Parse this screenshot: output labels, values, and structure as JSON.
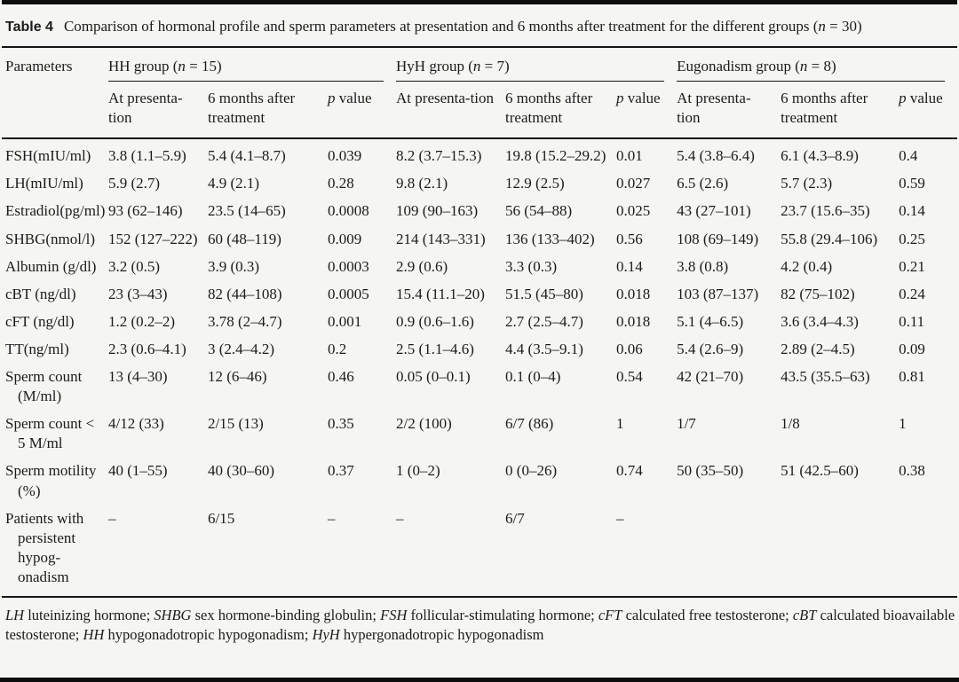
{
  "page": {
    "label": "Table 4",
    "caption_pre": "Comparison of hormonal profile and sperm parameters at presentation and 6 months after treatment for the different groups (",
    "caption_n": "n",
    "caption_post": " = 30)",
    "header": {
      "parameters": "Parameters",
      "groups": [
        {
          "pre": "HH group (",
          "n": "n",
          "post": " = 15)"
        },
        {
          "pre": "HyH group (",
          "n": "n",
          "post": " = 7)"
        },
        {
          "pre": "Eugonadism group (",
          "n": "n",
          "post": " = 8)"
        }
      ],
      "sub": {
        "pres": "At presenta-tion",
        "after": "6 months after treatment",
        "p": "p",
        "p_rest": " value"
      }
    },
    "rows": [
      {
        "param": "FSH(mIU/ml)",
        "cells": [
          "3.8 (1.1–5.9)",
          "5.4 (4.1–8.7)",
          "0.039",
          "8.2 (3.7–15.3)",
          "19.8 (15.2–29.2)",
          "0.01",
          "5.4 (3.8–6.4)",
          "6.1 (4.3–8.9)",
          "0.4"
        ]
      },
      {
        "param": "LH(mIU/ml)",
        "cells": [
          "5.9 (2.7)",
          "4.9 (2.1)",
          "0.28",
          "9.8 (2.1)",
          "12.9 (2.5)",
          "0.027",
          "6.5 (2.6)",
          "5.7 (2.3)",
          "0.59"
        ]
      },
      {
        "param": "Estradiol(pg/ml)",
        "cells": [
          "93 (62–146)",
          "23.5 (14–65)",
          "0.0008",
          "109 (90–163)",
          "56 (54–88)",
          "0.025",
          "43 (27–101)",
          "23.7 (15.6–35)",
          "0.14"
        ]
      },
      {
        "param": "SHBG(nmol/l)",
        "cells": [
          "152 (127–222)",
          "60 (48–119)",
          "0.009",
          "214 (143–331)",
          "136 (133–402)",
          "0.56",
          "108 (69–149)",
          "55.8 (29.4–106)",
          "0.25"
        ]
      },
      {
        "param": "Albumin (g/dl)",
        "cells": [
          "3.2 (0.5)",
          "3.9 (0.3)",
          "0.0003",
          "2.9 (0.6)",
          "3.3 (0.3)",
          "0.14",
          "3.8 (0.8)",
          "4.2 (0.4)",
          "0.21"
        ]
      },
      {
        "param": "cBT (ng/dl)",
        "cells": [
          "23 (3–43)",
          "82 (44–108)",
          "0.0005",
          "15.4 (11.1–20)",
          "51.5 (45–80)",
          "0.018",
          "103 (87–137)",
          "82 (75–102)",
          "0.24"
        ]
      },
      {
        "param": "cFT (ng/dl)",
        "cells": [
          "1.2 (0.2–2)",
          "3.78 (2–4.7)",
          "0.001",
          "0.9 (0.6–1.6)",
          "2.7 (2.5–4.7)",
          "0.018",
          "5.1 (4–6.5)",
          "3.6 (3.4–4.3)",
          "0.11"
        ]
      },
      {
        "param": "TT(ng/ml)",
        "cells": [
          "2.3 (0.6–4.1)",
          "3 (2.4–4.2)",
          "0.2",
          "2.5 (1.1–4.6)",
          "4.4 (3.5–9.1)",
          "0.06",
          "5.4 (2.6–9)",
          "2.89 (2–4.5)",
          "0.09"
        ]
      },
      {
        "param": "Sperm count (M/ml)",
        "cells": [
          "13 (4–30)",
          "12 (6–46)",
          "0.46",
          "0.05 (0–0.1)",
          "0.1 (0–4)",
          "0.54",
          "42 (21–70)",
          "43.5 (35.5–63)",
          "0.81"
        ]
      },
      {
        "param": "Sperm count < 5 M/ml",
        "cells": [
          "4/12 (33)",
          "2/15 (13)",
          "0.35",
          "2/2 (100)",
          "6/7 (86)",
          "1",
          "1/7",
          "1/8",
          "1"
        ]
      },
      {
        "param": "Sperm motility (%)",
        "cells": [
          "40 (1–55)",
          "40 (30–60)",
          "0.37",
          "1 (0–2)",
          "0 (0–26)",
          "0.74",
          "50 (35–50)",
          "51 (42.5–60)",
          "0.38"
        ]
      },
      {
        "param": "Patients with persistent hypog-onadism",
        "cells": [
          "–",
          "6/15",
          "–",
          "–",
          "6/7",
          "–",
          "",
          "",
          ""
        ]
      }
    ],
    "footnote": [
      {
        "text": "LH",
        "italic": true
      },
      {
        "text": " luteinizing hormone; ",
        "italic": false
      },
      {
        "text": "SHBG",
        "italic": true
      },
      {
        "text": " sex hormone-binding globulin; ",
        "italic": false
      },
      {
        "text": "FSH",
        "italic": true
      },
      {
        "text": " follicular-stimulating hormone; ",
        "italic": false
      },
      {
        "text": "cFT",
        "italic": true
      },
      {
        "text": " calculated free testosterone; ",
        "italic": false
      },
      {
        "text": "cBT",
        "italic": true
      },
      {
        "text": " calculated bioavailable testosterone; ",
        "italic": false
      },
      {
        "text": "HH",
        "italic": true
      },
      {
        "text": " hypogonadotropic hypogonadism; ",
        "italic": false
      },
      {
        "text": "HyH",
        "italic": true
      },
      {
        "text": " hypergonadotropic hypogonadism",
        "italic": false
      }
    ]
  }
}
